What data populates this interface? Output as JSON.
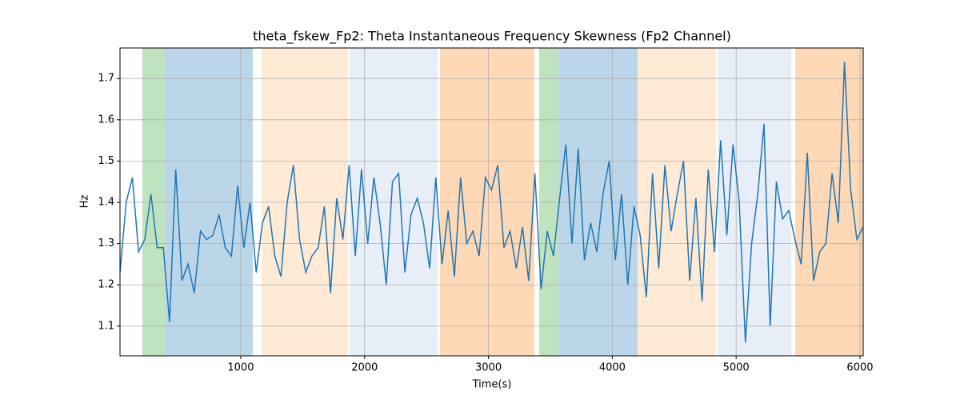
{
  "chart_data": {
    "type": "line",
    "title": "theta_fskew_Fp2: Theta Instantaneous Frequency Skewness (Fp2 Channel)",
    "x_label": "Time(s)",
    "y_label": "Hz",
    "x": [
      25,
      75,
      125,
      175,
      225,
      275,
      325,
      375,
      425,
      475,
      525,
      575,
      625,
      675,
      725,
      775,
      825,
      875,
      925,
      975,
      1025,
      1075,
      1125,
      1175,
      1225,
      1275,
      1325,
      1375,
      1425,
      1475,
      1525,
      1575,
      1625,
      1675,
      1725,
      1775,
      1825,
      1875,
      1925,
      1975,
      2025,
      2075,
      2125,
      2175,
      2225,
      2275,
      2325,
      2375,
      2425,
      2475,
      2525,
      2575,
      2625,
      2675,
      2725,
      2775,
      2825,
      2875,
      2925,
      2975,
      3025,
      3075,
      3125,
      3175,
      3225,
      3275,
      3325,
      3375,
      3425,
      3475,
      3525,
      3575,
      3625,
      3675,
      3725,
      3775,
      3825,
      3875,
      3925,
      3975,
      4025,
      4075,
      4125,
      4175,
      4225,
      4275,
      4325,
      4375,
      4425,
      4475,
      4525,
      4575,
      4625,
      4675,
      4725,
      4775,
      4825,
      4875,
      4925,
      4975,
      5025,
      5075,
      5125,
      5175,
      5225,
      5275,
      5325,
      5375,
      5425,
      5475,
      5525,
      5575,
      5625,
      5675,
      5725,
      5775,
      5825,
      5875,
      5925,
      5975,
      6025
    ],
    "series": [
      {
        "color": "#1f77b4",
        "values": [
          1.23,
          1.4,
          1.46,
          1.28,
          1.31,
          1.42,
          1.29,
          1.29,
          1.11,
          1.48,
          1.21,
          1.25,
          1.18,
          1.33,
          1.31,
          1.32,
          1.37,
          1.29,
          1.27,
          1.44,
          1.29,
          1.4,
          1.23,
          1.35,
          1.39,
          1.27,
          1.22,
          1.4,
          1.49,
          1.31,
          1.23,
          1.27,
          1.29,
          1.39,
          1.18,
          1.41,
          1.31,
          1.49,
          1.27,
          1.48,
          1.3,
          1.46,
          1.35,
          1.2,
          1.45,
          1.47,
          1.23,
          1.37,
          1.41,
          1.35,
          1.24,
          1.46,
          1.25,
          1.38,
          1.22,
          1.46,
          1.3,
          1.33,
          1.27,
          1.46,
          1.43,
          1.49,
          1.29,
          1.33,
          1.24,
          1.34,
          1.21,
          1.47,
          1.19,
          1.33,
          1.27,
          1.41,
          1.54,
          1.3,
          1.53,
          1.26,
          1.35,
          1.28,
          1.42,
          1.5,
          1.26,
          1.42,
          1.2,
          1.39,
          1.32,
          1.17,
          1.47,
          1.24,
          1.49,
          1.33,
          1.42,
          1.5,
          1.21,
          1.41,
          1.16,
          1.48,
          1.28,
          1.55,
          1.32,
          1.54,
          1.4,
          1.06,
          1.3,
          1.42,
          1.59,
          1.1,
          1.45,
          1.36,
          1.38,
          1.31,
          1.25,
          1.52,
          1.21,
          1.28,
          1.3,
          1.47,
          1.35,
          1.74,
          1.43,
          1.31,
          1.34
        ]
      }
    ],
    "spans": [
      {
        "start": 205,
        "end": 386,
        "color": "#2ca02c"
      },
      {
        "start": 386,
        "end": 1097,
        "color": "#1f77b4"
      },
      {
        "start": 1168,
        "end": 1866,
        "color": "#ffbb78"
      },
      {
        "start": 1879,
        "end": 2590,
        "color": "#aec7e8"
      },
      {
        "start": 2608,
        "end": 3371,
        "color": "#ff7f0e"
      },
      {
        "start": 3410,
        "end": 3566,
        "color": "#2ca02c"
      },
      {
        "start": 3566,
        "end": 4205,
        "color": "#1f77b4"
      },
      {
        "start": 4205,
        "end": 4838,
        "color": "#ffbb78"
      },
      {
        "start": 4851,
        "end": 5445,
        "color": "#aec7e8"
      },
      {
        "start": 5477,
        "end": 6026,
        "color": "#ff7f0e"
      }
    ],
    "span_alpha": 0.3,
    "xlim": [
      25,
      6026
    ],
    "ylim": [
      1.028,
      1.774
    ],
    "xticks": [
      1000,
      2000,
      3000,
      4000,
      5000,
      6000
    ],
    "yticks": [
      1.1,
      1.2,
      1.3,
      1.4,
      1.5,
      1.6,
      1.7
    ],
    "grid": true
  }
}
